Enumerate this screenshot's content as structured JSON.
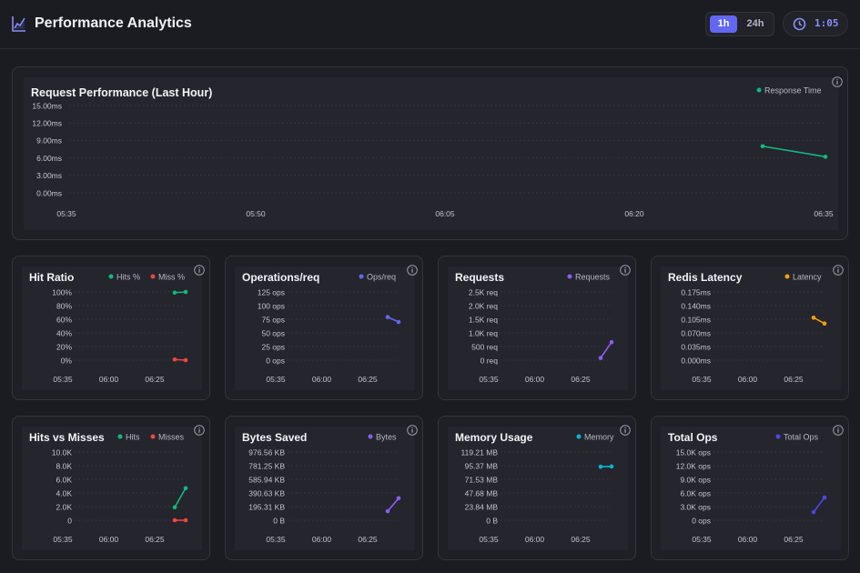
{
  "header": {
    "title": "Performance Analytics",
    "range_options": [
      "1h",
      "24h"
    ],
    "active_range": "1h",
    "timer": "1:05"
  },
  "colors": {
    "accent": "#6366f1",
    "green": "#10b981",
    "red": "#ef4444",
    "indigo": "#6366f1",
    "purple": "#8b5cf6",
    "orange": "#f59e0b",
    "cyan": "#06b6d4",
    "blue": "#4f46e5"
  },
  "icons": [
    "chart-line-icon",
    "clock-icon",
    "info-icon"
  ],
  "chart_data": [
    {
      "id": "main",
      "type": "line",
      "title": "Request Performance (Last Hour)",
      "yticks": [
        "15.00ms",
        "12.00ms",
        "9.00ms",
        "6.00ms",
        "3.00ms",
        "0.00ms"
      ],
      "xticks": [
        "05:35",
        "05:50",
        "06:05",
        "06:20",
        "06:35"
      ],
      "ylim": [
        0,
        15
      ],
      "series": [
        {
          "name": "Response Time",
          "color": "#10b981",
          "values": [
            8.0,
            6.2
          ]
        }
      ],
      "legend": "top-right"
    },
    {
      "id": "hit-ratio",
      "type": "line",
      "title": "Hit Ratio",
      "yticks": [
        "100%",
        "80%",
        "60%",
        "40%",
        "20%",
        "0%"
      ],
      "xticks": [
        "05:35",
        "06:00",
        "06:25"
      ],
      "ylim": [
        0,
        100
      ],
      "series": [
        {
          "name": "Hits %",
          "color": "#10b981",
          "values": [
            99,
            100
          ]
        },
        {
          "name": "Miss %",
          "color": "#ef4444",
          "values": [
            1,
            0
          ]
        }
      ],
      "legend": "top-right"
    },
    {
      "id": "ops-req",
      "type": "line",
      "title": "Operations/req",
      "yticks": [
        "125 ops",
        "100 ops",
        "75 ops",
        "50 ops",
        "25 ops",
        "0 ops"
      ],
      "xticks": [
        "05:35",
        "06:00",
        "06:25"
      ],
      "ylim": [
        0,
        125
      ],
      "series": [
        {
          "name": "Ops/req",
          "color": "#6366f1",
          "values": [
            79,
            70
          ]
        }
      ],
      "legend": "top-right"
    },
    {
      "id": "requests",
      "type": "line",
      "title": "Requests",
      "yticks": [
        "2.5K req",
        "2.0K req",
        "1.5K req",
        "1.0K req",
        "500 req",
        "0 req"
      ],
      "xticks": [
        "05:35",
        "06:00",
        "06:25"
      ],
      "ylim": [
        0,
        2500
      ],
      "series": [
        {
          "name": "Requests",
          "color": "#8b5cf6",
          "values": [
            80,
            660
          ]
        }
      ],
      "legend": "top-right"
    },
    {
      "id": "redis-latency",
      "type": "line",
      "title": "Redis Latency",
      "yticks": [
        "0.175ms",
        "0.140ms",
        "0.105ms",
        "0.070ms",
        "0.035ms",
        "0.000ms"
      ],
      "xticks": [
        "05:35",
        "06:00",
        "06:25"
      ],
      "ylim": [
        0,
        0.175
      ],
      "series": [
        {
          "name": "Latency",
          "color": "#f59e0b",
          "values": [
            0.109,
            0.094
          ]
        }
      ],
      "legend": "top-right"
    },
    {
      "id": "hits-misses",
      "type": "line",
      "title": "Hits vs Misses",
      "yticks": [
        "10.0K",
        "8.0K",
        "6.0K",
        "4.0K",
        "2.0K",
        "0"
      ],
      "xticks": [
        "05:35",
        "06:00",
        "06:25"
      ],
      "ylim": [
        0,
        10000
      ],
      "series": [
        {
          "name": "Hits",
          "color": "#10b981",
          "values": [
            1900,
            4700
          ]
        },
        {
          "name": "Misses",
          "color": "#ef4444",
          "values": [
            0,
            0
          ]
        }
      ],
      "legend": "top-right"
    },
    {
      "id": "bytes-saved",
      "type": "line",
      "title": "Bytes Saved",
      "yticks": [
        "976.56 KB",
        "781.25 KB",
        "585.94 KB",
        "390.63 KB",
        "195.31 KB",
        "0 B"
      ],
      "xticks": [
        "05:35",
        "06:00",
        "06:25"
      ],
      "ylim": [
        0,
        976.56
      ],
      "series": [
        {
          "name": "Bytes",
          "color": "#8b5cf6",
          "values": [
            130,
            315
          ]
        }
      ],
      "legend": "top-right"
    },
    {
      "id": "memory-usage",
      "type": "line",
      "title": "Memory Usage",
      "yticks": [
        "119.21 MB",
        "95.37 MB",
        "71.53 MB",
        "47.68 MB",
        "23.84 MB",
        "0 B"
      ],
      "xticks": [
        "05:35",
        "06:00",
        "06:25"
      ],
      "ylim": [
        0,
        119.21
      ],
      "series": [
        {
          "name": "Memory",
          "color": "#06b6d4",
          "values": [
            93.5,
            94.0
          ]
        }
      ],
      "legend": "top-right"
    },
    {
      "id": "total-ops",
      "type": "line",
      "title": "Total Ops",
      "yticks": [
        "15.0K ops",
        "12.0K ops",
        "9.0K ops",
        "6.0K ops",
        "3.0K ops",
        "0 ops"
      ],
      "xticks": [
        "05:35",
        "06:00",
        "06:25"
      ],
      "ylim": [
        0,
        15000
      ],
      "series": [
        {
          "name": "Total Ops",
          "color": "#4f46e5",
          "values": [
            1800,
            5000
          ]
        }
      ],
      "legend": "top-right"
    }
  ]
}
